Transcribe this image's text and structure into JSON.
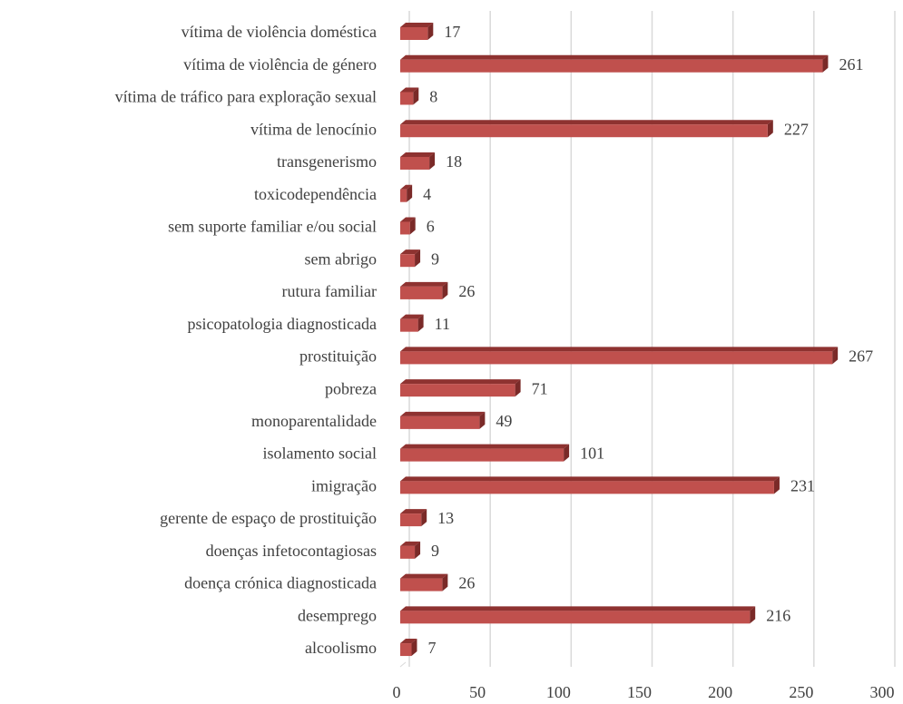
{
  "chart_data": {
    "type": "bar",
    "orientation": "horizontal",
    "categories": [
      "vítima de violência doméstica",
      "vítima de violência de género",
      "vítima de tráfico para exploração sexual",
      "vítima de lenocínio",
      "transgenerismo",
      "toxicodependência",
      "sem suporte familiar e/ou social",
      "sem abrigo",
      "rutura familiar",
      "psicopatologia diagnosticada",
      "prostituição",
      "pobreza",
      "monoparentalidade",
      "isolamento social",
      "imigração",
      "gerente de espaço de prostituição",
      "doenças infetocontagiosas",
      "doença crónica diagnosticada",
      "desemprego",
      "alcoolismo"
    ],
    "values": [
      17,
      261,
      8,
      227,
      18,
      4,
      6,
      9,
      26,
      11,
      267,
      71,
      49,
      101,
      231,
      13,
      9,
      26,
      216,
      7
    ],
    "color": "#c0504d",
    "xlim": [
      0,
      300
    ],
    "xticks": [
      0,
      50,
      100,
      150,
      200,
      250,
      300
    ],
    "grid": true
  }
}
